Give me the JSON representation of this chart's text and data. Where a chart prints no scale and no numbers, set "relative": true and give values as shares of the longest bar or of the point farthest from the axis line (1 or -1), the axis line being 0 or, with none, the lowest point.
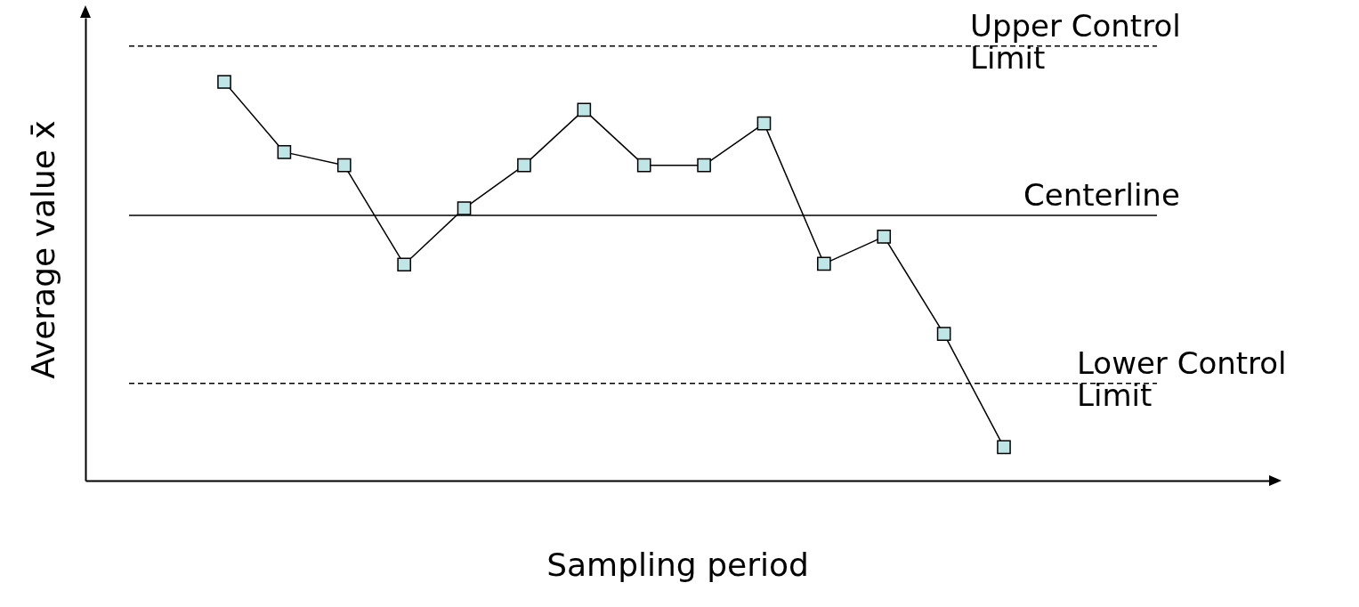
{
  "chart_data": {
    "type": "line",
    "relative": true,
    "xlabel": "Sampling period",
    "ylabel": "Average value x̄",
    "marker": "square",
    "grid": false,
    "categories": [
      null,
      null,
      null,
      null,
      null,
      null,
      null,
      null,
      null,
      null,
      null,
      null,
      null,
      null
    ],
    "series": [
      {
        "color": "#000000",
        "values": [
          1,
          0.824,
          0.791,
          0.542,
          0.683,
          0.791,
          0.93,
          0.791,
          0.791,
          0.896,
          0.544,
          0.612,
          0.368,
          0.084
        ]
      }
    ],
    "ref_lines": [
      {
        "axis": "y",
        "value": 1.09,
        "label": "Upper Control Limit",
        "line_style": "dashed",
        "color": "#000000"
      },
      {
        "axis": "y",
        "value": 0.665,
        "label": "Centerline",
        "line_style": "solid",
        "color": "#000000"
      },
      {
        "axis": "y",
        "value": 0.244,
        "label": "Lower Control Limit",
        "line_style": "dashed",
        "color": "#000000"
      }
    ]
  }
}
